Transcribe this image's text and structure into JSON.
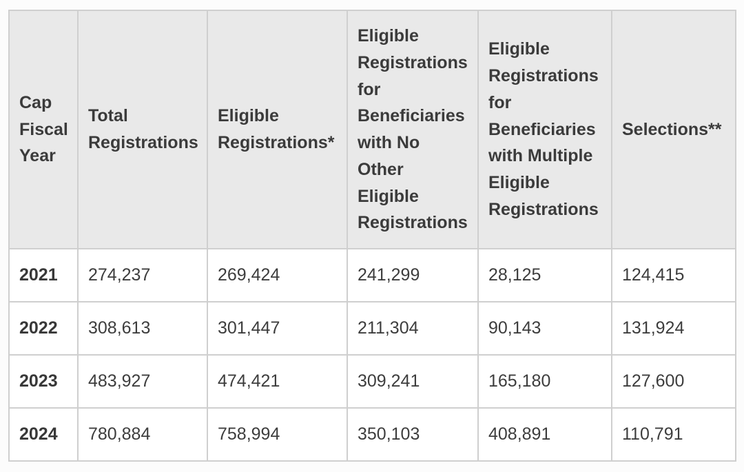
{
  "colors": {
    "page_background": "#fcfcfc",
    "header_background": "#e9e9e9",
    "row_background": "#ffffff",
    "border": "#cfcfcf",
    "text": "#3b3b3b"
  },
  "table": {
    "columns": [
      "Cap Fiscal Year",
      "Total Registrations",
      "Eligible Registrations*",
      "Eligible Registrations for Beneficiaries with No Other Eligible Registrations",
      "Eligible Registrations for Beneficiaries with Multiple Eligible Registrations",
      "Selections**"
    ],
    "rows": [
      {
        "year": "2021",
        "total_registrations": "274,237",
        "eligible_registrations": "269,424",
        "eligible_no_other": "241,299",
        "eligible_multiple": "28,125",
        "selections": "124,415"
      },
      {
        "year": "2022",
        "total_registrations": "308,613",
        "eligible_registrations": "301,447",
        "eligible_no_other": "211,304",
        "eligible_multiple": "90,143",
        "selections": "131,924"
      },
      {
        "year": "2023",
        "total_registrations": "483,927",
        "eligible_registrations": "474,421",
        "eligible_no_other": "309,241",
        "eligible_multiple": "165,180",
        "selections": "127,600"
      },
      {
        "year": "2024",
        "total_registrations": "780,884",
        "eligible_registrations": "758,994",
        "eligible_no_other": "350,103",
        "eligible_multiple": "408,891",
        "selections": "110,791"
      }
    ]
  }
}
